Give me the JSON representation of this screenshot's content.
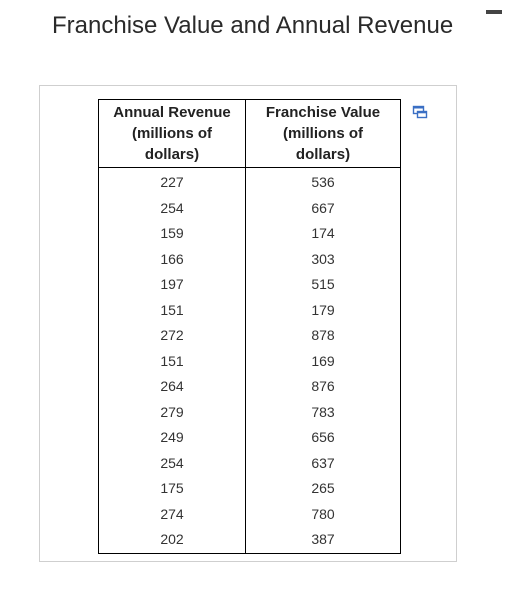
{
  "page": {
    "title": "Franchise Value and Annual Revenue"
  },
  "window": {
    "minimize_icon": "minimize-icon"
  },
  "table": {
    "copy_icon": "copy-icon",
    "headers": [
      [
        "Annual Revenue",
        "(millions of",
        "dollars)"
      ],
      [
        "Franchise Value",
        "(millions of",
        "dollars)"
      ]
    ],
    "rows": [
      [
        "227",
        "536"
      ],
      [
        "254",
        "667"
      ],
      [
        "159",
        "174"
      ],
      [
        "166",
        "303"
      ],
      [
        "197",
        "515"
      ],
      [
        "151",
        "179"
      ],
      [
        "272",
        "878"
      ],
      [
        "151",
        "169"
      ],
      [
        "264",
        "876"
      ],
      [
        "279",
        "783"
      ],
      [
        "249",
        "656"
      ],
      [
        "254",
        "637"
      ],
      [
        "175",
        "265"
      ],
      [
        "274",
        "780"
      ],
      [
        "202",
        "387"
      ]
    ]
  }
}
